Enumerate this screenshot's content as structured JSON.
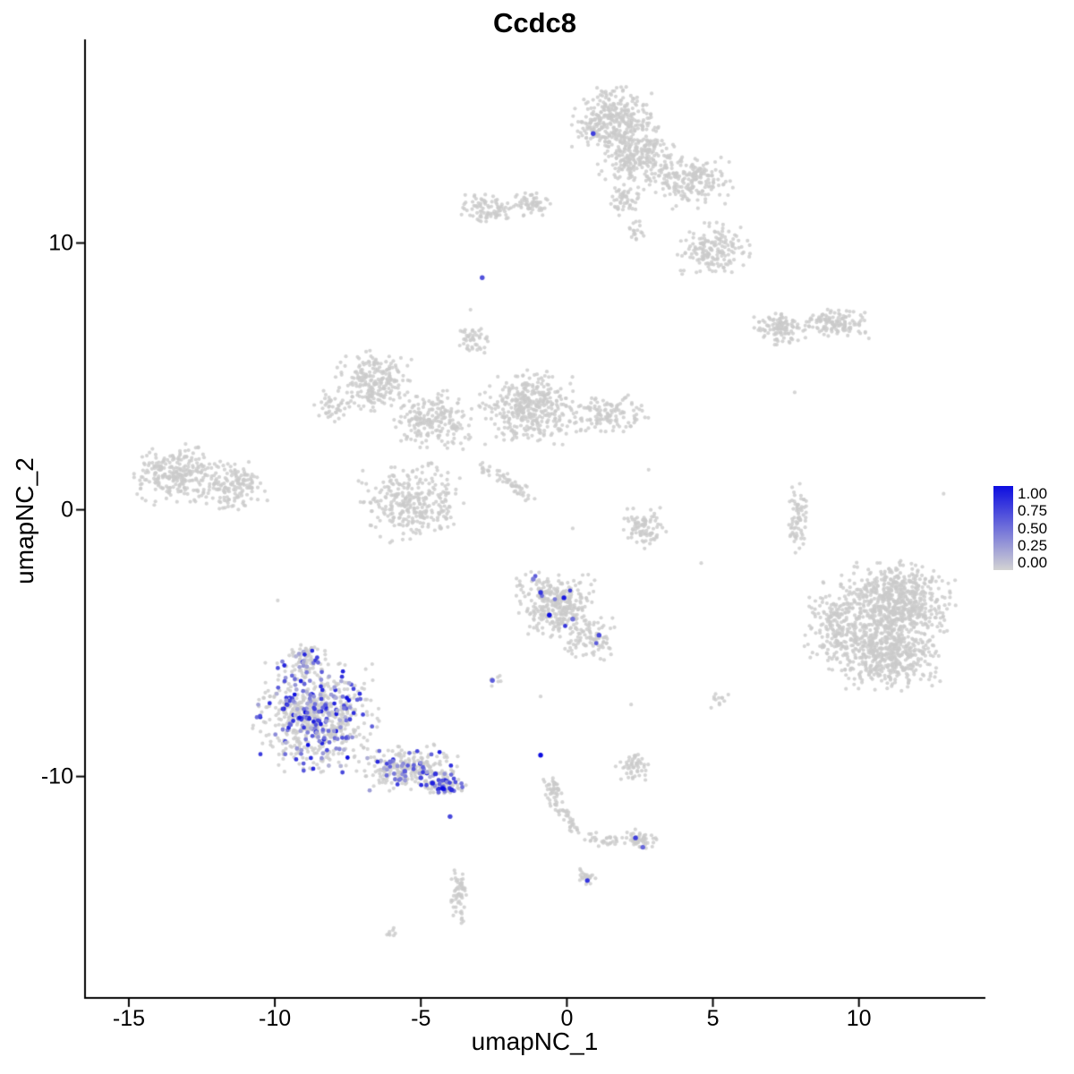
{
  "title": "Ccdc8",
  "axes": {
    "x": {
      "label": "umapNC_1",
      "tick_values": [
        -15,
        -10,
        -5,
        0,
        5,
        10
      ]
    },
    "y": {
      "label": "umapNC_2",
      "tick_values": [
        10,
        0,
        -10
      ]
    }
  },
  "legend": {
    "labels": [
      "1.00",
      "0.75",
      "0.50",
      "0.25",
      "0.00"
    ],
    "color_high": "#0d0de0",
    "color_low": "#d3d3d3"
  },
  "chart_data": {
    "type": "scatter",
    "title": "Ccdc8",
    "xlabel": "umapNC_1",
    "ylabel": "umapNC_2",
    "xlim": [
      -16.5,
      14.3
    ],
    "ylim": [
      -18.3,
      17.6
    ],
    "point_color_low": "#d3d3d3",
    "point_color_high": "#0d0de0",
    "background_point_color": "#d3d3d3",
    "seed": 42,
    "clusters": [
      {
        "name": "top-main-a",
        "x": 1.6,
        "y": 14.6,
        "rx": 1.3,
        "ry": 1.1,
        "n": 320,
        "frac": 0
      },
      {
        "name": "top-main-b",
        "x": 2.4,
        "y": 13.2,
        "rx": 1.2,
        "ry": 1.1,
        "n": 260,
        "frac": 0
      },
      {
        "name": "top-right-ext",
        "x": 4.3,
        "y": 12.3,
        "rx": 1.3,
        "ry": 0.9,
        "n": 190,
        "frac": 0
      },
      {
        "name": "top-neck",
        "x": 2.0,
        "y": 11.6,
        "rx": 0.5,
        "ry": 0.6,
        "n": 50,
        "frac": 0
      },
      {
        "name": "top-drop",
        "x": 2.4,
        "y": 10.4,
        "rx": 0.25,
        "ry": 0.45,
        "n": 18,
        "frac": 0
      },
      {
        "name": "upper-left-a",
        "x": -2.7,
        "y": 11.3,
        "rx": 0.9,
        "ry": 0.5,
        "n": 90,
        "frac": 0
      },
      {
        "name": "upper-left-b",
        "x": -1.2,
        "y": 11.5,
        "rx": 0.55,
        "ry": 0.45,
        "n": 55,
        "frac": 0
      },
      {
        "name": "upper-right",
        "x": 5.0,
        "y": 9.7,
        "rx": 1.15,
        "ry": 0.95,
        "n": 170,
        "frac": 0
      },
      {
        "name": "right-bar-a",
        "x": 7.3,
        "y": 6.8,
        "rx": 0.85,
        "ry": 0.55,
        "n": 110,
        "frac": 0
      },
      {
        "name": "right-bar-b",
        "x": 9.2,
        "y": 7.0,
        "rx": 1.05,
        "ry": 0.5,
        "n": 130,
        "frac": 0
      },
      {
        "name": "mid-left-a",
        "x": -6.6,
        "y": 4.8,
        "rx": 1.15,
        "ry": 1.05,
        "n": 230,
        "frac": 0
      },
      {
        "name": "mid-left-b",
        "x": -4.6,
        "y": 3.4,
        "rx": 1.2,
        "ry": 1.0,
        "n": 210,
        "frac": 0
      },
      {
        "name": "mid-left-west",
        "x": -8.1,
        "y": 3.9,
        "rx": 0.5,
        "ry": 0.55,
        "n": 40,
        "frac": 0
      },
      {
        "name": "mid-knob",
        "x": -3.2,
        "y": 6.4,
        "rx": 0.45,
        "ry": 0.45,
        "n": 45,
        "frac": 0
      },
      {
        "name": "mid-center",
        "x": -1.3,
        "y": 3.8,
        "rx": 1.5,
        "ry": 1.25,
        "n": 380,
        "frac": 0
      },
      {
        "name": "mid-east",
        "x": 1.3,
        "y": 3.6,
        "rx": 1.3,
        "ry": 0.65,
        "n": 130,
        "frac": 0
      },
      {
        "name": "mid-lower",
        "x": -5.3,
        "y": 0.3,
        "rx": 1.6,
        "ry": 1.35,
        "n": 300,
        "frac": 0
      },
      {
        "name": "far-left-a",
        "x": -13.4,
        "y": 1.3,
        "rx": 1.3,
        "ry": 1.05,
        "n": 260,
        "frac": 0
      },
      {
        "name": "far-left-b",
        "x": -11.4,
        "y": 0.9,
        "rx": 1.1,
        "ry": 0.8,
        "n": 150,
        "frac": 0
      },
      {
        "name": "small-right-of-center",
        "x": 2.6,
        "y": -0.6,
        "rx": 0.7,
        "ry": 0.8,
        "n": 85,
        "frac": 0
      },
      {
        "name": "thin-vertical",
        "x": 7.9,
        "y": -0.4,
        "rx": 0.3,
        "ry": 1.2,
        "n": 70,
        "frac": 0
      },
      {
        "name": "big-right-a",
        "x": 11.3,
        "y": -3.4,
        "rx": 1.8,
        "ry": 1.3,
        "n": 600,
        "frac": 0
      },
      {
        "name": "big-right-b",
        "x": 11.0,
        "y": -5.3,
        "rx": 1.7,
        "ry": 1.3,
        "n": 550,
        "frac": 0
      },
      {
        "name": "big-right-west",
        "x": 9.2,
        "y": -4.3,
        "rx": 1.0,
        "ry": 1.5,
        "n": 200,
        "frac": 0
      },
      {
        "name": "center-low",
        "x": -0.3,
        "y": -3.5,
        "rx": 1.3,
        "ry": 1.15,
        "n": 330,
        "frac": 0.015,
        "fmin": 0.3,
        "fmax": 0.8
      },
      {
        "name": "center-low-tail",
        "x": 0.8,
        "y": -4.9,
        "rx": 0.8,
        "ry": 0.75,
        "n": 90,
        "frac": 0.02,
        "fmin": 0.3,
        "fmax": 0.8
      },
      {
        "name": "pair-left",
        "x": -2.5,
        "y": -6.4,
        "rx": 0.3,
        "ry": 0.25,
        "n": 7,
        "frac": 0
      },
      {
        "name": "bottom-left-main",
        "x": -8.6,
        "y": -7.8,
        "rx": 1.9,
        "ry": 1.8,
        "n": 720,
        "frac": 0.25,
        "fmin": 0.15,
        "fmax": 1.0
      },
      {
        "name": "bottom-left-top",
        "x": -9.0,
        "y": -5.6,
        "rx": 0.8,
        "ry": 0.6,
        "n": 90,
        "frac": 0.25,
        "fmin": 0.15,
        "fmax": 1.0
      },
      {
        "name": "bottom-left-tail",
        "x": -5.4,
        "y": -9.7,
        "rx": 1.5,
        "ry": 0.8,
        "n": 260,
        "frac": 0.15,
        "fmin": 0.15,
        "fmax": 0.9
      },
      {
        "name": "bottom-left-tip",
        "x": -4.2,
        "y": -10.3,
        "rx": 0.7,
        "ry": 0.45,
        "n": 90,
        "frac": 0.25,
        "fmin": 0.3,
        "fmax": 1.0
      },
      {
        "name": "small-right-low",
        "x": 2.3,
        "y": -9.6,
        "rx": 0.55,
        "ry": 0.5,
        "n": 50,
        "frac": 0
      },
      {
        "name": "chain-top",
        "x": -0.5,
        "y": -10.5,
        "rx": 0.35,
        "ry": 0.45,
        "n": 40,
        "frac": 0
      },
      {
        "name": "chain-elbow",
        "x": 2.5,
        "y": -12.4,
        "rx": 0.55,
        "ry": 0.45,
        "n": 55,
        "frac": 0.05,
        "fmin": 0.4,
        "fmax": 0.8
      },
      {
        "name": "bottom-dot-cluster",
        "x": 0.6,
        "y": -13.8,
        "rx": 0.35,
        "ry": 0.3,
        "n": 25,
        "frac": 0
      },
      {
        "name": "bottom-left-vertical",
        "x": -3.7,
        "y": -14.5,
        "rx": 0.3,
        "ry": 0.95,
        "n": 60,
        "frac": 0
      },
      {
        "name": "tiny-bottom",
        "x": -6.0,
        "y": -15.8,
        "rx": 0.25,
        "ry": 0.15,
        "n": 8,
        "frac": 0
      },
      {
        "name": "sparse-right-low",
        "x": 5.2,
        "y": -7.1,
        "rx": 0.35,
        "ry": 0.3,
        "n": 12,
        "frac": 0
      }
    ],
    "streaks": [
      {
        "x1": -2.9,
        "y1": 1.7,
        "x2": -1.2,
        "y2": 0.4,
        "w": 0.13,
        "n": 55
      },
      {
        "x1": -0.4,
        "y1": -10.9,
        "x2": 0.5,
        "y2": -12.2,
        "w": 0.12,
        "n": 40
      },
      {
        "x1": 0.6,
        "y1": -12.3,
        "x2": 1.9,
        "y2": -12.5,
        "w": 0.12,
        "n": 30
      }
    ],
    "singles": [
      [
        2.8,
        1.5
      ],
      [
        0.2,
        -0.7
      ],
      [
        7.8,
        4.4
      ],
      [
        -0.9,
        -7.0
      ],
      [
        2.2,
        -7.3
      ],
      [
        -3.3,
        7.5
      ],
      [
        12.9,
        0.6
      ],
      [
        -9.9,
        -3.4
      ],
      [
        4.6,
        -2.0
      ]
    ],
    "expressing_points": [
      [
        0.9,
        14.1,
        0.75
      ],
      [
        -2.9,
        8.7,
        0.65
      ],
      [
        -0.9,
        -3.1,
        0.8
      ],
      [
        -0.6,
        -3.95,
        1.0
      ],
      [
        -0.1,
        -3.3,
        0.95
      ],
      [
        -1.15,
        -2.6,
        0.45
      ],
      [
        0.2,
        -4.1,
        0.5
      ],
      [
        1.1,
        -4.7,
        0.7
      ],
      [
        -2.55,
        -6.4,
        0.6
      ],
      [
        -0.9,
        -9.2,
        1.0
      ],
      [
        2.35,
        -12.3,
        0.75
      ],
      [
        2.6,
        -12.65,
        0.55
      ],
      [
        0.7,
        -13.9,
        0.8
      ],
      [
        -4.0,
        -11.5,
        0.7
      ],
      [
        -4.6,
        -10.25,
        0.9
      ],
      [
        -4.25,
        -10.45,
        1.0
      ],
      [
        -3.95,
        -10.5,
        0.85
      ],
      [
        -5.0,
        -10.05,
        0.7
      ],
      [
        -5.55,
        -9.8,
        0.6
      ],
      [
        -6.05,
        -9.45,
        0.5
      ],
      [
        -4.5,
        -9.9,
        0.8
      ]
    ]
  }
}
